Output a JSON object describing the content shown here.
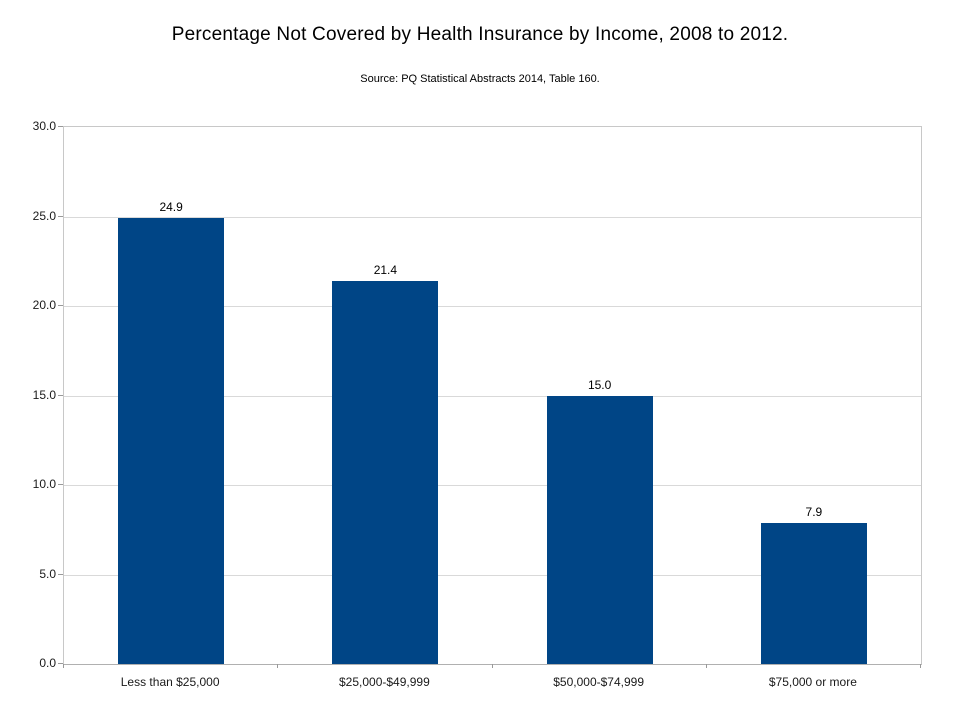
{
  "title": "Percentage Not Covered by Health Insurance by Income, 2008 to 2012.",
  "subtitle": "Source: PQ Statistical Abstracts 2014, Table 160.",
  "colors": {
    "bar": "#004586",
    "gridline": "#d9d9d9",
    "plot_border": "#c8c8c8",
    "axis": "#999999",
    "text": "#000000",
    "background": "#ffffff"
  },
  "chart_data": {
    "type": "bar",
    "title": "Percentage Not Covered by Health Insurance by Income, 2008 to 2012.",
    "subtitle": "Source: PQ Statistical Abstracts 2014, Table 160.",
    "categories": [
      "Less than $25,000",
      "$25,000-$49,999",
      "$50,000-$74,999",
      "$75,000 or more"
    ],
    "values": [
      24.9,
      21.4,
      15.0,
      7.9
    ],
    "data_labels": [
      "24.9",
      "21.4",
      "15.0",
      "7.9"
    ],
    "xlabel": "",
    "ylabel": "",
    "ylim": [
      0,
      30
    ],
    "ytick_step": 5,
    "ytick_labels": [
      "0.0",
      "5.0",
      "10.0",
      "15.0",
      "20.0",
      "25.0",
      "30.0"
    ],
    "grid": true,
    "legend": false,
    "series_color": "#004586"
  }
}
